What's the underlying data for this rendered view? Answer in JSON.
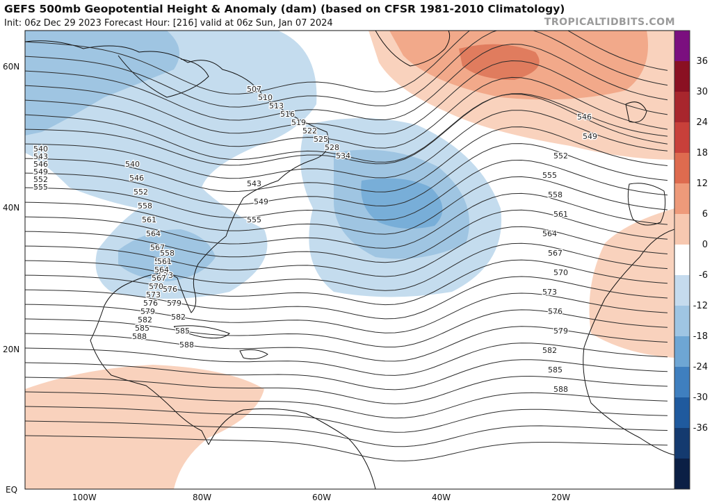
{
  "header": {
    "title": "GEFS 500mb Geopotential Height & Anomaly (dam) (based on CFSR 1981-2010 Climatology)",
    "subtitle": "Init: 06z Dec 29 2023   Forecast Hour: [216]   valid at 06z Sun, Jan 07 2024",
    "credit": "TROPICALTIDBITS.COM"
  },
  "map": {
    "lat_labels": [
      "60N",
      "40N",
      "20N",
      "EQ"
    ],
    "lon_labels": [
      "100W",
      "80W",
      "60W",
      "40W",
      "20W"
    ],
    "contour_labels": [
      "507",
      "510",
      "513",
      "516",
      "519",
      "522",
      "525",
      "528",
      "534",
      "540",
      "546",
      "552",
      "558",
      "561",
      "564",
      "567",
      "570",
      "573",
      "576",
      "579",
      "582",
      "585",
      "588",
      "540",
      "543",
      "546",
      "549",
      "552",
      "555",
      "543",
      "549",
      "555",
      "558",
      "561",
      "564",
      "567",
      "570",
      "573",
      "576",
      "579",
      "582",
      "585",
      "588",
      "546",
      "549",
      "552",
      "555",
      "558",
      "561",
      "564",
      "567",
      "570",
      "573",
      "576",
      "579",
      "582",
      "585",
      "588"
    ]
  },
  "colorbar": {
    "ticks": [
      "36",
      "30",
      "24",
      "18",
      "12",
      "6",
      "0",
      "-6",
      "-12",
      "-18",
      "-24",
      "-30",
      "-36"
    ],
    "colors": [
      "#7b0f7f",
      "#8a1022",
      "#a8262d",
      "#c8403a",
      "#de6b4f",
      "#ee9a7a",
      "#f7c8b0",
      "#ffffff",
      "#c5dbee",
      "#9fc5e3",
      "#6ea6d4",
      "#3f7fbf",
      "#1f5a9e",
      "#143a6f",
      "#0b1f45"
    ]
  },
  "colors": {
    "positive_light": "#f9d2bd",
    "positive_mid": "#f2a98a",
    "positive_dark": "#e07c5e",
    "negative_light": "#c4dcee",
    "negative_mid": "#9fc5e2",
    "negative_dark": "#78aed8",
    "contour": "#2a2a2a",
    "coast": "#111111"
  }
}
